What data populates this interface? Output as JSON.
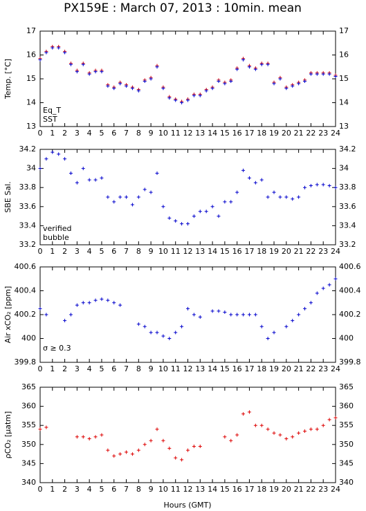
{
  "title": "PX159E : March 07, 2013 : 10min. mean",
  "xlabel": "Hours (GMT)",
  "chart_data": [
    {
      "type": "scatter",
      "ylabel": "Temp. [°C]",
      "xlim": [
        0,
        24
      ],
      "xticks": [
        0,
        1,
        2,
        3,
        4,
        5,
        6,
        7,
        8,
        9,
        10,
        11,
        12,
        13,
        14,
        15,
        16,
        17,
        18,
        19,
        20,
        21,
        22,
        23,
        24
      ],
      "ylim": [
        13,
        17
      ],
      "yticks": [
        13,
        14,
        15,
        16,
        17
      ],
      "x": [
        0,
        0.5,
        1,
        1.5,
        2,
        2.5,
        3,
        3.5,
        4,
        4.5,
        5,
        5.5,
        6,
        6.5,
        7,
        7.5,
        8,
        8.5,
        9,
        9.5,
        10,
        10.5,
        11,
        11.5,
        12,
        12.5,
        13,
        13.5,
        14,
        14.5,
        15,
        15.5,
        16,
        16.5,
        17,
        17.5,
        18,
        18.5,
        19,
        19.5,
        20,
        20.5,
        21,
        21.5,
        22,
        22.5,
        23,
        23.5,
        24
      ],
      "series": [
        {
          "name": "Eq_T",
          "color": "#dd0000",
          "values": [
            15.85,
            16.15,
            16.35,
            16.35,
            16.15,
            15.65,
            15.35,
            15.65,
            15.25,
            15.35,
            15.35,
            14.75,
            14.65,
            14.85,
            14.75,
            14.65,
            14.55,
            14.95,
            15.05,
            15.55,
            14.65,
            14.25,
            14.15,
            14.05,
            14.15,
            14.35,
            14.35,
            14.55,
            14.65,
            14.95,
            14.85,
            14.95,
            15.45,
            15.85,
            15.55,
            15.45,
            15.65,
            15.65,
            14.85,
            15.05,
            14.65,
            14.75,
            14.85,
            14.95,
            15.25,
            15.25,
            15.25,
            15.25,
            15.15
          ]
        },
        {
          "name": "SST",
          "color": "#0000cc",
          "values": [
            15.8,
            16.1,
            16.3,
            16.3,
            16.1,
            15.6,
            15.3,
            15.6,
            15.2,
            15.3,
            15.3,
            14.7,
            14.6,
            14.8,
            14.7,
            14.6,
            14.5,
            14.9,
            15.0,
            15.5,
            14.6,
            14.2,
            14.1,
            14.0,
            14.1,
            14.3,
            14.3,
            14.5,
            14.6,
            14.9,
            14.8,
            14.9,
            15.4,
            15.8,
            15.5,
            15.4,
            15.6,
            15.6,
            14.8,
            15.0,
            14.6,
            14.7,
            14.8,
            14.9,
            15.2,
            15.2,
            15.2,
            15.2,
            15.1
          ]
        }
      ]
    },
    {
      "type": "scatter",
      "ylabel": "SBE Sal.",
      "xlim": [
        0,
        24
      ],
      "xticks": [
        0,
        1,
        2,
        3,
        4,
        5,
        6,
        7,
        8,
        9,
        10,
        11,
        12,
        13,
        14,
        15,
        16,
        17,
        18,
        19,
        20,
        21,
        22,
        23,
        24
      ],
      "ylim": [
        33.2,
        34.2
      ],
      "yticks": [
        33.2,
        33.4,
        33.6,
        33.8,
        34,
        34.2
      ],
      "x": [
        0,
        0.5,
        1,
        1.5,
        2,
        2.5,
        3,
        3.5,
        4,
        4.5,
        5,
        5.5,
        6,
        6.5,
        7,
        7.5,
        8,
        8.5,
        9,
        9.5,
        10,
        10.5,
        11,
        11.5,
        12,
        12.5,
        13,
        13.5,
        14,
        14.5,
        15,
        15.5,
        16,
        16.5,
        17,
        17.5,
        18,
        18.5,
        19,
        19.5,
        20,
        20.5,
        21,
        21.5,
        22,
        22.5,
        23,
        23.5,
        24
      ],
      "series": [
        {
          "name": "verified",
          "color": "#0000cc",
          "values": [
            34.0,
            34.1,
            34.17,
            34.15,
            34.1,
            33.95,
            33.85,
            34.0,
            33.88,
            33.88,
            33.9,
            33.7,
            33.65,
            33.7,
            33.7,
            33.62,
            33.7,
            33.78,
            33.75,
            33.95,
            33.6,
            33.48,
            33.45,
            33.42,
            33.42,
            33.5,
            33.55,
            33.55,
            33.6,
            33.5,
            33.65,
            33.65,
            33.75,
            33.98,
            33.9,
            33.85,
            33.88,
            33.7,
            33.75,
            33.7,
            33.7,
            33.68,
            33.7,
            33.8,
            33.82,
            33.83,
            33.83,
            33.82,
            33.8
          ]
        },
        {
          "name": "bubble",
          "color": "#cc00cc",
          "values": []
        }
      ]
    },
    {
      "type": "scatter",
      "ylabel": "Air xCO₂ [ppm]",
      "annotation": "σ ≥ 0.3",
      "annotation_color": "#cc00cc",
      "xlim": [
        0,
        24
      ],
      "xticks": [
        0,
        1,
        2,
        3,
        4,
        5,
        6,
        7,
        8,
        9,
        10,
        11,
        12,
        13,
        14,
        15,
        16,
        17,
        18,
        19,
        20,
        21,
        22,
        23,
        24
      ],
      "ylim": [
        399.8,
        400.6
      ],
      "yticks": [
        399.8,
        400,
        400.2,
        400.4,
        400.6
      ],
      "x": [
        0,
        0.5,
        1,
        1.5,
        2,
        2.5,
        3,
        3.5,
        4,
        4.5,
        5,
        5.5,
        6,
        6.5,
        7,
        7.5,
        8,
        8.5,
        9,
        9.5,
        10,
        10.5,
        11,
        11.5,
        12,
        12.5,
        13,
        13.5,
        14,
        14.5,
        15,
        15.5,
        16,
        16.5,
        17,
        17.5,
        18,
        18.5,
        19,
        19.5,
        20,
        20.5,
        21,
        21.5,
        22,
        22.5,
        23,
        23.5,
        24
      ],
      "series": [
        {
          "color": "#0000cc",
          "values": [
            400.25,
            400.2,
            null,
            null,
            400.15,
            400.2,
            400.28,
            400.3,
            400.3,
            400.32,
            400.33,
            400.32,
            400.3,
            400.28,
            null,
            null,
            400.12,
            400.1,
            400.05,
            400.05,
            400.02,
            400.0,
            400.05,
            400.1,
            400.25,
            400.2,
            400.18,
            null,
            400.23,
            400.23,
            400.22,
            400.2,
            400.2,
            400.2,
            400.2,
            400.2,
            400.1,
            400.0,
            400.05,
            null,
            400.1,
            400.15,
            400.2,
            400.25,
            400.3,
            400.38,
            400.42,
            400.45,
            400.5
          ]
        }
      ]
    },
    {
      "type": "scatter",
      "ylabel": "ρCO₂ [μatm]",
      "xlim": [
        0,
        24
      ],
      "xticks": [
        0,
        1,
        2,
        3,
        4,
        5,
        6,
        7,
        8,
        9,
        10,
        11,
        12,
        13,
        14,
        15,
        16,
        17,
        18,
        19,
        20,
        21,
        22,
        23,
        24
      ],
      "ylim": [
        340,
        365
      ],
      "yticks": [
        340,
        345,
        350,
        355,
        360,
        365
      ],
      "x": [
        0,
        0.5,
        1,
        1.5,
        2,
        2.5,
        3,
        3.5,
        4,
        4.5,
        5,
        5.5,
        6,
        6.5,
        7,
        7.5,
        8,
        8.5,
        9,
        9.5,
        10,
        10.5,
        11,
        11.5,
        12,
        12.5,
        13,
        13.5,
        14,
        14.5,
        15,
        15.5,
        16,
        16.5,
        17,
        17.5,
        18,
        18.5,
        19,
        19.5,
        20,
        20.5,
        21,
        21.5,
        22,
        22.5,
        23,
        23.5,
        24
      ],
      "series": [
        {
          "color": "#dd0000",
          "values": [
            354,
            354.5,
            null,
            null,
            null,
            null,
            352,
            352,
            351.5,
            352,
            352.5,
            348.5,
            347,
            347.5,
            348,
            347.5,
            348.5,
            350,
            351,
            354,
            351,
            349,
            346.5,
            346,
            348.5,
            349.5,
            349.5,
            null,
            null,
            null,
            352,
            351,
            352.5,
            358,
            358.5,
            355,
            355,
            354,
            353,
            352.5,
            351.5,
            352,
            353,
            353.5,
            354,
            354,
            355,
            356.5,
            357
          ]
        }
      ]
    }
  ]
}
